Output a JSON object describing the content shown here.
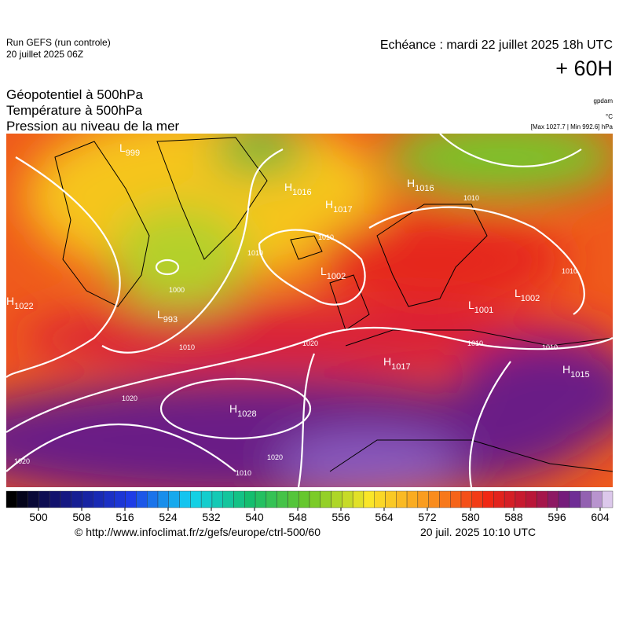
{
  "header": {
    "run": "Run GEFS (run controle)",
    "run_date": "20 juillet 2025 06Z",
    "valid": "Echéance : mardi 22 juillet 2025 18h UTC",
    "lead": "+ 60H",
    "fields": [
      "Géopotentiel à 500hPa",
      "Température à 500hPa",
      "Pression au niveau de la mer"
    ],
    "unit_geo": "gpdam",
    "unit_temp": "°C",
    "pressure_range": "[Max 1027.7 | Min 992.6] hPa"
  },
  "map": {
    "pressure_centers": [
      {
        "type": "L",
        "value": 993
      },
      {
        "type": "H",
        "value": 1028
      },
      {
        "type": "L",
        "value": 1002
      },
      {
        "type": "H",
        "value": 1017
      },
      {
        "type": "H",
        "value": 1016
      },
      {
        "type": "H",
        "value": 1016
      },
      {
        "type": "H",
        "value": 1017
      },
      {
        "type": "L",
        "value": 1001
      },
      {
        "type": "L",
        "value": 1002
      },
      {
        "type": "H",
        "value": 1015
      },
      {
        "type": "H",
        "value": 1022
      },
      {
        "type": "L",
        "value": 999
      }
    ],
    "isobar_labels": [
      1010,
      1020,
      1020,
      1020,
      1010,
      1010,
      1000,
      1010,
      1010,
      1020,
      1010,
      1010,
      1010
    ]
  },
  "colorbar": {
    "ticks": [
      500,
      508,
      516,
      524,
      532,
      540,
      548,
      556,
      564,
      572,
      580,
      588,
      596,
      604
    ]
  },
  "footer": {
    "source": "© http://www.infoclimat.fr/z/gefs/europe/ctrl-500/60",
    "generated": "20 juil. 2025 10:10 UTC"
  }
}
